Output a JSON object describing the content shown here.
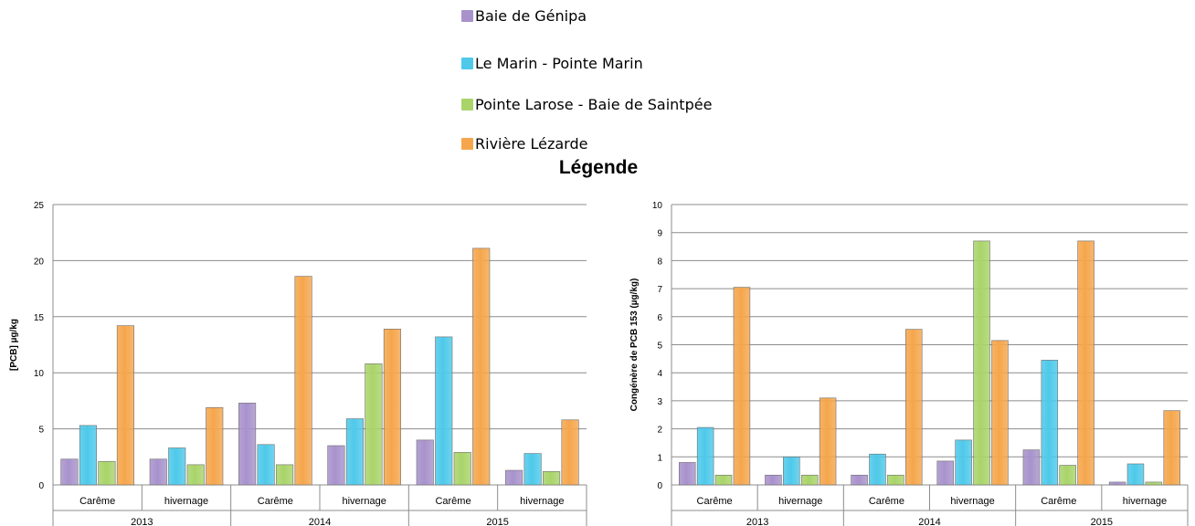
{
  "legend": {
    "title": "Légende",
    "items": [
      {
        "label": "Baie de Génipa",
        "color": "#a892cc"
      },
      {
        "label": "Le Marin - Pointe Marin",
        "color": "#4ec9ea"
      },
      {
        "label": "Pointe Larose - Baie de Saintpée",
        "color": "#a9d46a"
      },
      {
        "label": "Rivière Lézarde",
        "color": "#f5a64c"
      }
    ]
  },
  "chart_data": [
    {
      "type": "bar",
      "title": "",
      "xlabel": "",
      "ylabel": "[PCB] µg/kg",
      "ylim": [
        0,
        25
      ],
      "yticks": [
        0,
        5,
        10,
        15,
        20,
        25
      ],
      "grid": true,
      "years": [
        "2013",
        "2014",
        "2015"
      ],
      "categories": [
        "Carême",
        "hivernage",
        "Carême",
        "hivernage",
        "Carême",
        "hivernage"
      ],
      "series": [
        {
          "name": "Baie de Génipa",
          "values": [
            2.3,
            2.3,
            7.3,
            3.5,
            4.0,
            1.3
          ]
        },
        {
          "name": "Le Marin - Pointe Marin",
          "values": [
            5.3,
            3.3,
            3.6,
            5.9,
            13.2,
            2.8
          ]
        },
        {
          "name": "Pointe Larose - Baie de Saintpée",
          "values": [
            2.1,
            1.8,
            1.8,
            10.8,
            2.9,
            1.2
          ]
        },
        {
          "name": "Rivière Lézarde",
          "values": [
            14.2,
            6.9,
            18.6,
            13.9,
            21.1,
            5.8
          ]
        }
      ]
    },
    {
      "type": "bar",
      "title": "",
      "xlabel": "",
      "ylabel": "Congénère de PCB 153 (µg/kg)",
      "ylim": [
        0,
        10
      ],
      "yticks": [
        0,
        1,
        2,
        3,
        4,
        5,
        6,
        7,
        8,
        9,
        10
      ],
      "grid": true,
      "years": [
        "2013",
        "2014",
        "2015"
      ],
      "categories": [
        "Carême",
        "hivernage",
        "Carême",
        "hivernage",
        "Carême",
        "hivernage"
      ],
      "series": [
        {
          "name": "Baie de Génipa",
          "values": [
            0.8,
            0.35,
            0.35,
            0.85,
            1.25,
            0.1
          ]
        },
        {
          "name": "Le Marin - Pointe Marin",
          "values": [
            2.05,
            1.0,
            1.1,
            1.6,
            4.45,
            0.75
          ]
        },
        {
          "name": "Pointe Larose - Baie de Saintpée",
          "values": [
            0.35,
            0.35,
            0.35,
            8.7,
            0.7,
            0.1
          ]
        },
        {
          "name": "Rivière Lézarde",
          "values": [
            7.05,
            3.1,
            5.55,
            5.15,
            8.7,
            2.65
          ]
        }
      ]
    }
  ]
}
